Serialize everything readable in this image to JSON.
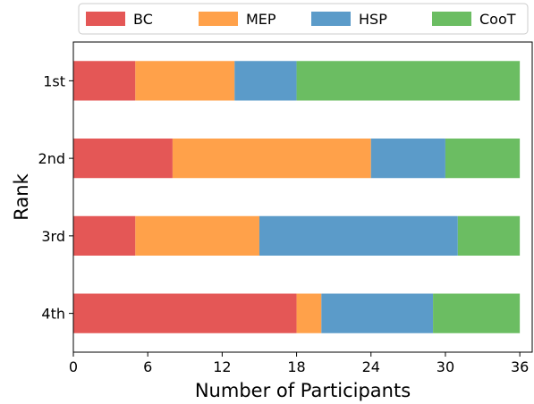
{
  "chart_data": {
    "type": "bar",
    "orientation": "horizontal",
    "stacked": true,
    "categories": [
      "1st",
      "2nd",
      "3rd",
      "4th"
    ],
    "series": [
      {
        "name": "BC",
        "color": "#e45756",
        "values": [
          5,
          8,
          5,
          18
        ]
      },
      {
        "name": "MEP",
        "color": "#ffa14a",
        "values": [
          8,
          16,
          10,
          2
        ]
      },
      {
        "name": "HSP",
        "color": "#5b9bc9",
        "values": [
          5,
          6,
          16,
          9
        ]
      },
      {
        "name": "CooT",
        "color": "#6bbd62",
        "values": [
          18,
          6,
          5,
          7
        ]
      }
    ],
    "xlabel": "Number of Participants",
    "ylabel": "Rank",
    "xticks": [
      0,
      6,
      12,
      18,
      24,
      30,
      36
    ],
    "xlim": [
      0,
      37
    ],
    "legend_position": "top",
    "grid": false
  }
}
